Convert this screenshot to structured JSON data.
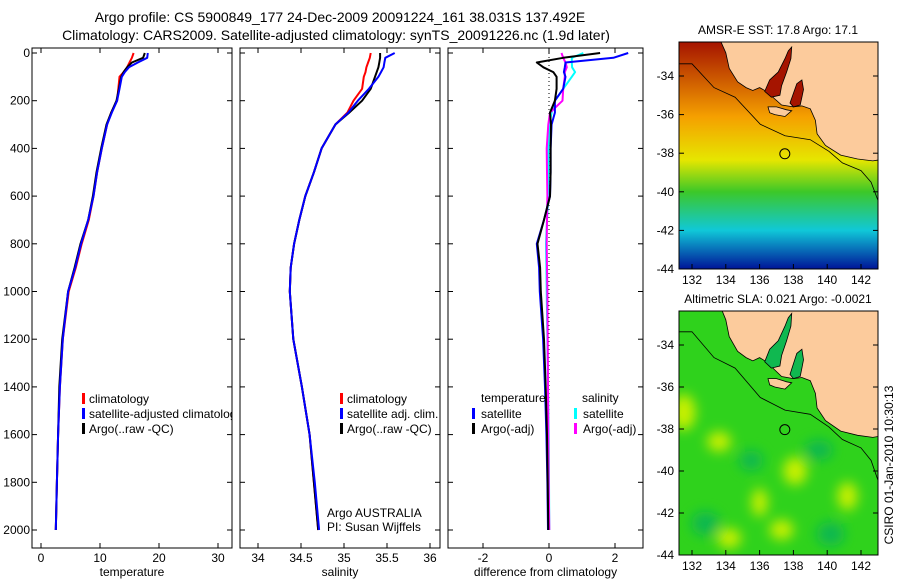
{
  "header": {
    "line1": "Argo profile: CS 5900849_177 24-Dec-2009 20091224_161 38.031S 137.492E",
    "line2": "Climatology: CARS2009. Satellite-adjusted climatology: synTS_20091226.nc (1.9d later)"
  },
  "footer_stamp": "CSIRO 01-Jan-2010 10:30:13",
  "chart_data": [
    {
      "type": "line",
      "xlabel": "temperature",
      "ylabel": "",
      "xlim": [
        -1.6,
        32.3
      ],
      "ylim": [
        2000,
        0
      ],
      "xticks": [
        "0",
        "10",
        "20",
        "30"
      ],
      "xtick_values": [
        0,
        10,
        20,
        30
      ],
      "yticks": [
        "0",
        "200",
        "400",
        "600",
        "800",
        "1000",
        "1200",
        "1400",
        "1600",
        "1800",
        "2000"
      ],
      "ytick_values": [
        0,
        200,
        400,
        600,
        800,
        1000,
        1200,
        1400,
        1600,
        1800,
        2000
      ],
      "depth": [
        0,
        20,
        40,
        60,
        80,
        100,
        150,
        200,
        250,
        300,
        400,
        500,
        600,
        700,
        800,
        900,
        1000,
        1200,
        1400,
        1600,
        1800,
        2000
      ],
      "series": [
        {
          "name": "climatology",
          "color": "#ff0000",
          "values": [
            15.7,
            15.4,
            15.0,
            14.6,
            14.0,
            13.3,
            13.1,
            12.9,
            11.9,
            11.2,
            10.3,
            9.5,
            8.9,
            8.1,
            6.9,
            5.9,
            4.7,
            3.7,
            3.2,
            2.9,
            2.7,
            2.5
          ]
        },
        {
          "name": "satellite-adjusted climatology",
          "color": "#0000ff",
          "values": [
            18.1,
            18.0,
            16.4,
            14.9,
            14.2,
            13.7,
            13.3,
            12.9,
            12.0,
            11.2,
            10.3,
            9.5,
            8.9,
            8.0,
            6.8,
            5.8,
            4.6,
            3.7,
            3.2,
            2.9,
            2.7,
            2.5
          ]
        },
        {
          "name": "Argo(..raw -QC)",
          "color": "#000000",
          "values": [
            17.6,
            17.3,
            15.4,
            14.6,
            14.0,
            13.6,
            13.2,
            12.8,
            11.9,
            11.1,
            10.2,
            9.4,
            8.8,
            8.0,
            6.7,
            5.7,
            4.6,
            3.6,
            3.1,
            2.9,
            2.7,
            2.5
          ]
        }
      ]
    },
    {
      "type": "line",
      "xlabel": "salinity",
      "ylabel": "",
      "xlim": [
        33.83,
        36.16
      ],
      "ylim": [
        2000,
        0
      ],
      "xticks": [
        "34",
        "34.5",
        "35",
        "35.5",
        "36"
      ],
      "xtick_values": [
        34,
        34.5,
        35,
        35.5,
        36
      ],
      "depth": [
        0,
        20,
        40,
        60,
        80,
        100,
        150,
        200,
        250,
        300,
        400,
        500,
        600,
        700,
        800,
        900,
        1000,
        1200,
        1400,
        1600,
        1800,
        2000
      ],
      "series": [
        {
          "name": "climatology",
          "color": "#ff0000",
          "values": [
            35.31,
            35.3,
            35.28,
            35.26,
            35.25,
            35.23,
            35.21,
            35.11,
            35.04,
            34.9,
            34.74,
            34.65,
            34.55,
            34.48,
            34.42,
            34.38,
            34.37,
            34.41,
            34.51,
            34.6,
            34.65,
            34.7
          ]
        },
        {
          "name": "satellite adj. clim.",
          "color": "#0000ff",
          "values": [
            35.59,
            35.48,
            35.47,
            35.46,
            35.43,
            35.4,
            35.29,
            35.16,
            35.05,
            34.9,
            34.74,
            34.65,
            34.55,
            34.48,
            34.42,
            34.38,
            34.37,
            34.41,
            34.51,
            34.6,
            34.66,
            34.71
          ]
        },
        {
          "name": "Argo(..raw -QC)",
          "color": "#000000",
          "values": [
            35.42,
            35.42,
            35.41,
            35.4,
            35.38,
            35.36,
            35.31,
            35.21,
            35.06,
            34.9,
            34.74,
            34.65,
            34.55,
            34.48,
            34.42,
            34.38,
            34.37,
            34.41,
            34.51,
            34.6,
            34.65,
            34.7
          ]
        }
      ],
      "annotation": [
        "Argo AUSTRALIA",
        "PI: Susan Wijffels"
      ]
    },
    {
      "type": "line",
      "xlabel": "difference from climatology",
      "ylabel": "",
      "xlim": [
        -3.1,
        2.9
      ],
      "ylim": [
        2000,
        0
      ],
      "xticks": [
        "-2",
        "0",
        "2"
      ],
      "xtick_values": [
        -2,
        0,
        2
      ],
      "depth": [
        0,
        20,
        40,
        60,
        80,
        100,
        150,
        200,
        250,
        300,
        400,
        500,
        600,
        700,
        800,
        900,
        1000,
        1200,
        1400,
        1600,
        1800,
        2000
      ],
      "legend_headers": [
        "temperature",
        "salinity"
      ],
      "series": [
        {
          "group": "temperature",
          "name": "satellite",
          "color": "#0000ff",
          "values": [
            2.4,
            1.95,
            0.5,
            0.48,
            0.45,
            0.5,
            0.43,
            0.18,
            0.18,
            0.08,
            0.05,
            0.05,
            0.03,
            -0.15,
            -0.37,
            -0.3,
            -0.28,
            -0.18,
            -0.12,
            -0.08,
            -0.05,
            -0.03
          ]
        },
        {
          "group": "temperature",
          "name": "Argo(-adj)",
          "color": "#000000",
          "values": [
            1.55,
            0.43,
            -0.37,
            -0.17,
            0.13,
            0.23,
            0.23,
            0.18,
            0.03,
            0.06,
            0.05,
            0.05,
            0.03,
            -0.15,
            -0.35,
            -0.27,
            -0.25,
            -0.15,
            -0.1,
            -0.06,
            -0.04,
            -0.02
          ]
        },
        {
          "group": "salinity",
          "name": "satellite",
          "color": "#00ffff",
          "values": [
            1.04,
            0.69,
            0.69,
            0.7,
            0.79,
            0.69,
            0.43,
            0.18,
            0.08,
            0.01,
            -0.02,
            -0.02,
            -0.02,
            -0.06,
            -0.09,
            -0.08,
            -0.07,
            -0.05,
            -0.03,
            -0.01,
            0.0,
            0.01
          ]
        },
        {
          "group": "salinity",
          "name": "Argo(-adj)",
          "color": "#ff00ff",
          "values": [
            0.38,
            0.43,
            0.5,
            0.54,
            0.48,
            0.48,
            0.43,
            0.41,
            0.03,
            -0.02,
            -0.07,
            -0.06,
            -0.05,
            -0.06,
            -0.07,
            -0.06,
            -0.05,
            -0.04,
            -0.03,
            -0.02,
            -0.01,
            0.01
          ]
        }
      ]
    },
    {
      "type": "heatmap",
      "title": "AMSR-E SST: 17.8 Argo: 17.1",
      "field": "SST",
      "satellite_value": 17.8,
      "argo_value": 17.1,
      "xticks": [
        "132",
        "134",
        "136",
        "138",
        "140",
        "142"
      ],
      "xtick_values": [
        132,
        134,
        136,
        138,
        140,
        142
      ],
      "yticks": [
        "-34",
        "-36",
        "-38",
        "-40",
        "-42",
        "-44"
      ],
      "ytick_values": [
        -34,
        -36,
        -38,
        -40,
        -42,
        -44
      ],
      "xlim": [
        131.2,
        143.9
      ],
      "ylim": [
        -44,
        -32.2
      ],
      "marker": {
        "lon": 137.492,
        "lat": -38.031
      },
      "colors": {
        "land": "#fccb9c",
        "top": "#a51400",
        "mid": "#f5a000",
        "yellow": "#e6e600",
        "green": "#3cc828",
        "cyan": "#10c8d8",
        "bottom": "#001498"
      }
    },
    {
      "type": "heatmap",
      "title": "Altimetric SLA: 0.021 Argo: -0.0021",
      "field": "SLA",
      "satellite_value": 0.021,
      "argo_value": -0.0021,
      "xticks": [
        "132",
        "134",
        "136",
        "138",
        "140",
        "142"
      ],
      "xtick_values": [
        132,
        134,
        136,
        138,
        140,
        142
      ],
      "yticks": [
        "-34",
        "-36",
        "-38",
        "-40",
        "-42",
        "-44"
      ],
      "ytick_values": [
        -34,
        -36,
        -38,
        -40,
        -42,
        -44
      ],
      "xlim": [
        131.2,
        143.9
      ],
      "ylim": [
        -44,
        -32.4
      ],
      "marker": {
        "lon": 137.492,
        "lat": -38.031
      },
      "colors": {
        "land": "#fccb9c",
        "base": "#2fd21c",
        "high": "#c8f000",
        "low": "#10b850"
      }
    }
  ]
}
